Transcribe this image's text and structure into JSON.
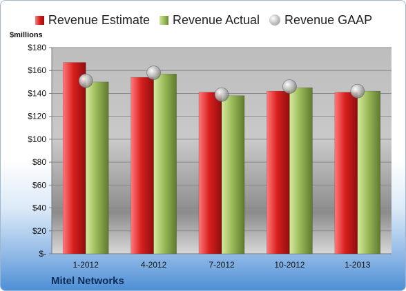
{
  "chart_data": {
    "type": "bar",
    "title": "",
    "unit_label": "$millions",
    "categories": [
      "1-2012",
      "4-2012",
      "7-2012",
      "10-2012",
      "1-2013"
    ],
    "series": [
      {
        "name": "Revenue Estimate",
        "kind": "bar",
        "color": "#d21a1a",
        "values": [
          167,
          154,
          141,
          142,
          141
        ]
      },
      {
        "name": "Revenue Actual",
        "kind": "bar",
        "color": "#9bbb59",
        "values": [
          150,
          157,
          138,
          145,
          142
        ]
      },
      {
        "name": "Revenue GAAP",
        "kind": "marker",
        "color": "#b0b0b0",
        "values": [
          151,
          158,
          139,
          146,
          142
        ]
      }
    ],
    "ylim": [
      0,
      180
    ],
    "ytick_values": [
      0,
      20,
      40,
      60,
      80,
      100,
      120,
      140,
      160,
      180
    ],
    "ytick_labels": [
      "$-",
      "$20",
      "$40",
      "$60",
      "$80",
      "$100",
      "$120",
      "$140",
      "$160",
      "$180"
    ],
    "grid": true,
    "legend_position": "top",
    "footer": "Mitel Networks"
  }
}
